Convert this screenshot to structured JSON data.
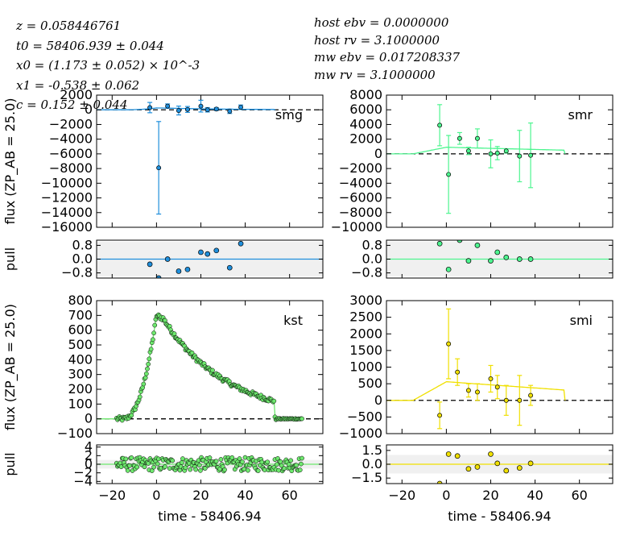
{
  "fit_params": [
    "z = 0.058446761",
    "t0 = 58406.939 ± 0.044",
    "x0 = (1.173 ± 0.052) × 10^-3",
    "x1 = -0.538 ± 0.062",
    "c = 0.152 ± 0.044"
  ],
  "dust_params": [
    "host ebv = 0.0000000",
    "host rv = 3.1000000",
    "mw ebv = 0.017208337",
    "mw rv = 3.1000000"
  ],
  "chart_data": [
    {
      "type": "scatter",
      "band": "smg",
      "color": "#1f8fdc",
      "xlabel": "",
      "ylabel": "flux (ZP_AB = 25.0)",
      "xlim": [
        -27,
        75
      ],
      "ylim": [
        -16000,
        2000
      ],
      "yticks": [
        2000,
        0,
        -2000,
        -4000,
        -6000,
        -8000,
        -10000,
        -12000,
        -14000,
        -16000
      ],
      "points": [
        {
          "x": -3,
          "y": 300,
          "err": 700
        },
        {
          "x": 1,
          "y": -7900,
          "err": 6300
        },
        {
          "x": 5,
          "y": 500,
          "err": 300
        },
        {
          "x": 10,
          "y": -100,
          "err": 600
        },
        {
          "x": 14,
          "y": 50,
          "err": 400
        },
        {
          "x": 20,
          "y": 500,
          "err": 800
        },
        {
          "x": 23,
          "y": 0,
          "err": 300
        },
        {
          "x": 27,
          "y": 100,
          "err": 200
        },
        {
          "x": 33,
          "y": -200,
          "err": 300
        },
        {
          "x": 38,
          "y": 350,
          "err": 300
        }
      ],
      "pull": {
        "ylim": [
          -1.1,
          1.1
        ],
        "yticks": [
          0.8,
          0.0,
          -0.8
        ],
        "ytick_labels": [
          "0.8",
          "0.0",
          "−0.8"
        ],
        "band": 1,
        "values": [
          -0.3,
          -1.1,
          0.0,
          -0.7,
          -0.6,
          0.4,
          0.3,
          0.5,
          -0.5,
          0.9
        ]
      }
    },
    {
      "type": "scatter",
      "band": "smr",
      "color": "#4df58f",
      "xlabel": "",
      "ylabel": "",
      "xlim": [
        -27,
        75
      ],
      "ylim": [
        -10000,
        8000
      ],
      "yticks": [
        8000,
        6000,
        4000,
        2000,
        0,
        -2000,
        -4000,
        -6000,
        -8000,
        -10000
      ],
      "points": [
        {
          "x": -3,
          "y": 3900,
          "err": 2800
        },
        {
          "x": 1,
          "y": -2800,
          "err": 5300
        },
        {
          "x": 6,
          "y": 2100,
          "err": 800
        },
        {
          "x": 10,
          "y": 400,
          "err": 500
        },
        {
          "x": 14,
          "y": 2100,
          "err": 1300
        },
        {
          "x": 20,
          "y": 0,
          "err": 1900
        },
        {
          "x": 23,
          "y": 100,
          "err": 900
        },
        {
          "x": 27,
          "y": 400,
          "err": 300
        },
        {
          "x": 33,
          "y": -300,
          "err": 3500
        },
        {
          "x": 38,
          "y": -200,
          "err": 4400
        }
      ],
      "pull": {
        "ylim": [
          -1.1,
          1.1
        ],
        "yticks": [
          0.8,
          0.0,
          -0.8
        ],
        "ytick_labels": [
          "0.8",
          "0.0",
          "−0.8"
        ],
        "band": 1,
        "values": [
          0.9,
          -0.6,
          1.1,
          -0.1,
          0.8,
          -0.1,
          0.4,
          0.1,
          0.0,
          0.0
        ]
      }
    },
    {
      "type": "scatter",
      "band": "kst",
      "color": "#6ee86e",
      "xlabel": "",
      "ylabel": "flux (ZP_AB = 25.0)",
      "xlim": [
        -27,
        75
      ],
      "ylim": [
        -100,
        800
      ],
      "yticks": [
        800,
        700,
        600,
        500,
        400,
        300,
        200,
        100,
        0,
        -100
      ],
      "pull": {
        "ylim": [
          -4.5,
          4.5
        ],
        "yticks": [
          4,
          2,
          0,
          -2,
          -4
        ],
        "ytick_labels": [
          "4",
          "2",
          "0",
          "−2",
          "−4"
        ],
        "band": 1
      }
    },
    {
      "type": "scatter",
      "band": "smi",
      "color": "#f0e000",
      "xlabel": "",
      "ylabel": "",
      "xlim": [
        -27,
        75
      ],
      "ylim": [
        -1000,
        3000
      ],
      "yticks": [
        3000,
        2500,
        2000,
        1500,
        1000,
        500,
        0,
        -500,
        -1000
      ],
      "points": [
        {
          "x": -3,
          "y": -450,
          "err": 400
        },
        {
          "x": 1,
          "y": 1700,
          "err": 1050
        },
        {
          "x": 5,
          "y": 850,
          "err": 400
        },
        {
          "x": 10,
          "y": 300,
          "err": 200
        },
        {
          "x": 14,
          "y": 250,
          "err": 250
        },
        {
          "x": 20,
          "y": 650,
          "err": 400
        },
        {
          "x": 23,
          "y": 400,
          "err": 350
        },
        {
          "x": 27,
          "y": 0,
          "err": 450
        },
        {
          "x": 33,
          "y": 0,
          "err": 750
        },
        {
          "x": 38,
          "y": 150,
          "err": 300
        }
      ],
      "pull": {
        "ylim": [
          -2.1,
          2.1
        ],
        "yticks": [
          1.5,
          0.0,
          -1.5
        ],
        "ytick_labels": [
          "1.5",
          "0.0",
          "−1.5"
        ],
        "band": 1,
        "values": [
          -2.1,
          1.1,
          0.9,
          -0.5,
          -0.3,
          1.1,
          0.1,
          -0.7,
          -0.4,
          0.1
        ]
      }
    }
  ],
  "xticks": [
    -20,
    0,
    20,
    40,
    60
  ],
  "xlabel": "time - 58406.94",
  "pull_ylabel": "pull"
}
